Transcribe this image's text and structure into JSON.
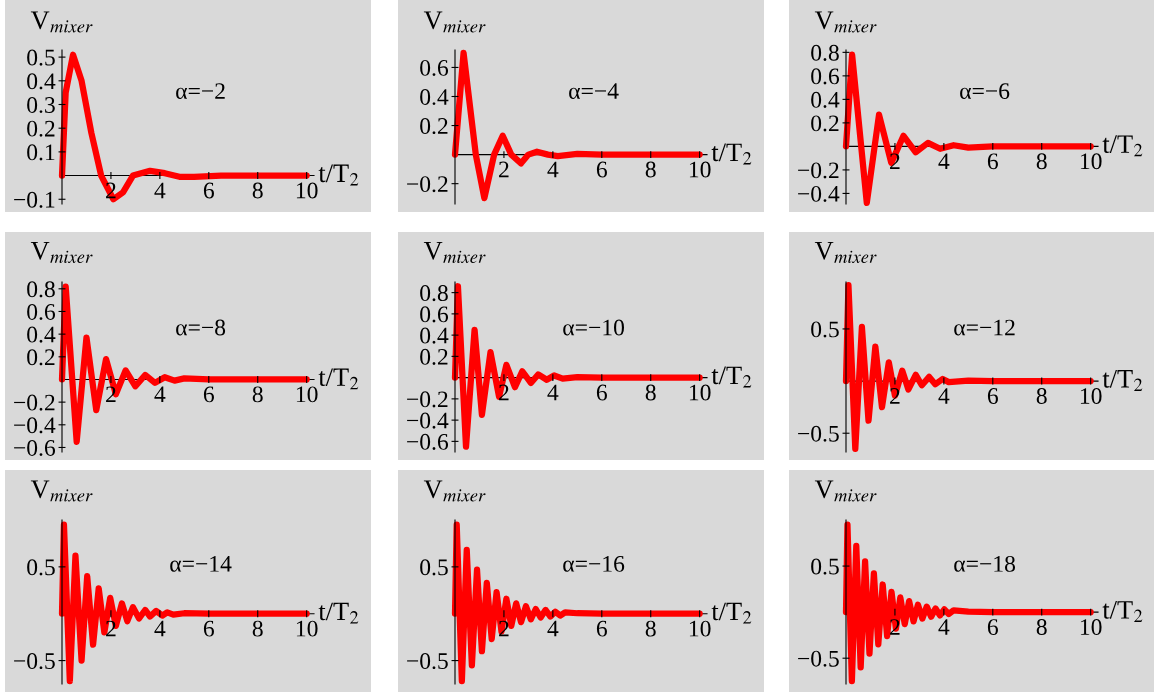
{
  "chart_data": [
    {
      "type": "line",
      "ylabel": "V$_{mixer}$",
      "xlabel": "t/T$_{2}$",
      "annotations": [
        "α=−2"
      ],
      "xlim": [
        0,
        10.3
      ],
      "xticks": [
        2,
        4,
        6,
        8,
        10
      ],
      "ylim": [
        -0.12,
        0.53
      ],
      "yticks": [
        -0.1,
        0.1,
        0.2,
        0.3,
        0.4,
        0.5
      ],
      "grid": false,
      "marker": "none",
      "line_style": "solid",
      "series": [
        {
          "color": "#ff0000",
          "x": [
            0,
            0.15,
            0.45,
            0.8,
            1.2,
            1.6,
            2.1,
            2.5,
            2.9,
            3.6,
            4.2,
            4.8,
            5.4,
            6.5,
            8,
            10
          ],
          "values": [
            0,
            0.35,
            0.51,
            0.4,
            0.18,
            0.0,
            -0.1,
            -0.07,
            0.0,
            0.02,
            0.01,
            -0.005,
            -0.005,
            0.0,
            0.0,
            0.0
          ]
        }
      ]
    },
    {
      "type": "line",
      "ylabel": "V$_{mixer}$",
      "xlabel": "t/T$_{2}$",
      "annotations": [
        "α=−4"
      ],
      "xlim": [
        0,
        10.3
      ],
      "xticks": [
        2,
        4,
        6,
        8,
        10
      ],
      "ylim": [
        -0.34,
        0.72
      ],
      "yticks": [
        -0.2,
        0.2,
        0.4,
        0.6
      ],
      "grid": false,
      "marker": "none",
      "line_style": "solid",
      "series": [
        {
          "color": "#ff0000",
          "x": [
            0,
            0.35,
            0.85,
            1.2,
            1.6,
            1.95,
            2.3,
            2.7,
            3.0,
            3.35,
            3.8,
            4.2,
            5.0,
            6.0,
            8,
            10
          ],
          "values": [
            0,
            0.7,
            0.0,
            -0.3,
            0.0,
            0.13,
            0.0,
            -0.06,
            0.0,
            0.02,
            0.0,
            -0.01,
            0.005,
            0.0,
            0.0,
            0.0
          ]
        }
      ]
    },
    {
      "type": "line",
      "ylabel": "V$_{mixer}$",
      "xlabel": "t/T$_{2}$",
      "annotations": [
        "α=−6"
      ],
      "xlim": [
        0,
        10.3
      ],
      "xticks": [
        2,
        4,
        6,
        8,
        10
      ],
      "ylim": [
        -0.49,
        0.82
      ],
      "yticks": [
        -0.4,
        -0.2,
        0.2,
        0.4,
        0.6,
        0.8
      ],
      "grid": false,
      "marker": "none",
      "line_style": "solid",
      "series": [
        {
          "color": "#ff0000",
          "x": [
            0,
            0.25,
            0.85,
            1.35,
            1.85,
            2.35,
            2.85,
            3.35,
            3.85,
            4.4,
            5.0,
            6.0,
            8,
            10
          ],
          "values": [
            0,
            0.78,
            -0.48,
            0.27,
            -0.14,
            0.09,
            -0.05,
            0.03,
            -0.02,
            0.01,
            -0.01,
            0.0,
            0.0,
            0.0
          ]
        }
      ]
    },
    {
      "type": "line",
      "ylabel": "V$_{mixer}$",
      "xlabel": "t/T$_{2}$",
      "annotations": [
        "α=−8"
      ],
      "xlim": [
        0,
        10.3
      ],
      "xticks": [
        2,
        4,
        6,
        8,
        10
      ],
      "ylim": [
        -0.64,
        0.86
      ],
      "yticks": [
        -0.6,
        -0.4,
        -0.2,
        0.2,
        0.4,
        0.6,
        0.8
      ],
      "grid": false,
      "marker": "none",
      "line_style": "solid",
      "series": [
        {
          "color": "#ff0000",
          "x": [
            0,
            0.15,
            0.6,
            1.0,
            1.4,
            1.8,
            2.2,
            2.6,
            3.0,
            3.4,
            3.8,
            4.2,
            4.6,
            5.0,
            6.0,
            8,
            10
          ],
          "values": [
            0,
            0.82,
            -0.55,
            0.37,
            -0.27,
            0.18,
            -0.13,
            0.08,
            -0.06,
            0.04,
            -0.03,
            0.02,
            -0.01,
            0.01,
            0.0,
            0.0,
            0.0
          ]
        }
      ]
    },
    {
      "type": "line",
      "ylabel": "V$_{mixer}$",
      "xlabel": "t/T$_{2}$",
      "annotations": [
        "α=−10"
      ],
      "xlim": [
        0,
        10.3
      ],
      "xticks": [
        2,
        4,
        6,
        8,
        10
      ],
      "ylim": [
        -0.7,
        0.9
      ],
      "yticks": [
        -0.6,
        -0.4,
        -0.2,
        0.2,
        0.4,
        0.6,
        0.8
      ],
      "grid": false,
      "marker": "none",
      "line_style": "solid",
      "series": [
        {
          "color": "#ff0000",
          "x": [
            0,
            0.12,
            0.45,
            0.8,
            1.1,
            1.45,
            1.8,
            2.1,
            2.45,
            2.75,
            3.1,
            3.4,
            3.75,
            4.05,
            4.4,
            5.0,
            6.0,
            8,
            10
          ],
          "values": [
            0,
            0.86,
            -0.65,
            0.45,
            -0.35,
            0.24,
            -0.18,
            0.12,
            -0.09,
            0.06,
            -0.05,
            0.03,
            -0.02,
            0.02,
            -0.01,
            0.005,
            0.0,
            0.0,
            0.0
          ]
        }
      ]
    },
    {
      "type": "line",
      "ylabel": "V$_{mixer}$",
      "xlabel": "t/T$_{2}$",
      "annotations": [
        "α=−12"
      ],
      "xlim": [
        0,
        10.3
      ],
      "xticks": [
        2,
        4,
        6,
        8,
        10
      ],
      "ylim": [
        -0.68,
        0.95
      ],
      "yticks": [
        -0.5,
        0.5
      ],
      "grid": false,
      "marker": "none",
      "line_style": "solid",
      "series": [
        {
          "color": "#ff0000",
          "x": [
            0,
            0.1,
            0.38,
            0.65,
            0.92,
            1.2,
            1.47,
            1.75,
            2.0,
            2.3,
            2.55,
            2.85,
            3.1,
            3.4,
            3.65,
            3.95,
            4.2,
            5.0,
            6.0,
            8,
            10
          ],
          "values": [
            0,
            0.92,
            -0.65,
            0.52,
            -0.38,
            0.33,
            -0.25,
            0.18,
            -0.14,
            0.1,
            -0.08,
            0.06,
            -0.04,
            0.04,
            -0.03,
            0.02,
            -0.01,
            0.005,
            0.0,
            0.0,
            0.0
          ]
        }
      ]
    },
    {
      "type": "line",
      "ylabel": "V$_{mixer}$",
      "xlabel": "t/T$_{2}$",
      "annotations": [
        "α=−14"
      ],
      "xlim": [
        0,
        10.3
      ],
      "xticks": [
        2,
        4,
        6,
        8,
        10
      ],
      "ylim": [
        -0.75,
        1.0
      ],
      "yticks": [
        -0.5,
        0.5
      ],
      "grid": false,
      "marker": "none",
      "line_style": "solid",
      "series": [
        {
          "color": "#ff0000",
          "x": [
            0,
            0.08,
            0.32,
            0.55,
            0.8,
            1.03,
            1.27,
            1.5,
            1.73,
            1.97,
            2.2,
            2.45,
            2.67,
            2.9,
            3.15,
            3.4,
            3.6,
            3.85,
            4.1,
            4.3,
            4.55,
            5.0,
            6.0,
            8,
            10
          ],
          "values": [
            0,
            0.95,
            -0.72,
            0.62,
            -0.5,
            0.4,
            -0.33,
            0.27,
            -0.2,
            0.17,
            -0.13,
            0.11,
            -0.08,
            0.07,
            -0.05,
            0.04,
            -0.03,
            0.03,
            -0.02,
            0.015,
            -0.01,
            0.005,
            0.0,
            0.0,
            0.0
          ]
        }
      ]
    },
    {
      "type": "line",
      "ylabel": "V$_{mixer}$",
      "xlabel": "t/T$_{2}$",
      "annotations": [
        "α=−16"
      ],
      "xlim": [
        0,
        10.3
      ],
      "xticks": [
        2,
        4,
        6,
        8,
        10
      ],
      "ylim": [
        -0.75,
        1.0
      ],
      "yticks": [
        -0.5,
        0.5
      ],
      "grid": false,
      "marker": "none",
      "line_style": "solid",
      "series": [
        {
          "color": "#ff0000",
          "x": [
            0,
            0.07,
            0.28,
            0.48,
            0.69,
            0.9,
            1.1,
            1.3,
            1.5,
            1.7,
            1.9,
            2.1,
            2.3,
            2.5,
            2.7,
            2.9,
            3.1,
            3.3,
            3.5,
            3.7,
            3.9,
            4.1,
            4.3,
            4.5,
            5.0,
            6.0,
            8,
            10
          ],
          "values": [
            0,
            0.95,
            -0.72,
            0.68,
            -0.55,
            0.47,
            -0.4,
            0.33,
            -0.27,
            0.23,
            -0.19,
            0.16,
            -0.13,
            0.11,
            -0.09,
            0.08,
            -0.06,
            0.05,
            -0.04,
            0.04,
            -0.03,
            0.02,
            -0.02,
            0.015,
            0.005,
            0.0,
            0.0,
            0.0
          ]
        }
      ]
    },
    {
      "type": "line",
      "ylabel": "V$_{mixer}$",
      "xlabel": "t/T$_{2}$",
      "annotations": [
        "α=−18"
      ],
      "xlim": [
        0,
        10.3
      ],
      "xticks": [
        2,
        4,
        6,
        8,
        10
      ],
      "ylim": [
        -0.78,
        1.0
      ],
      "yticks": [
        -0.5,
        0.5
      ],
      "grid": false,
      "marker": "none",
      "line_style": "solid",
      "series": [
        {
          "color": "#ff0000",
          "x": [
            0,
            0.06,
            0.24,
            0.42,
            0.6,
            0.78,
            0.96,
            1.14,
            1.32,
            1.5,
            1.68,
            1.86,
            2.04,
            2.22,
            2.4,
            2.58,
            2.76,
            2.94,
            3.12,
            3.3,
            3.48,
            3.66,
            3.84,
            4.02,
            4.2,
            4.4,
            5.0,
            6.0,
            8,
            10
          ],
          "values": [
            0,
            0.95,
            -0.75,
            0.72,
            -0.6,
            0.55,
            -0.45,
            0.42,
            -0.35,
            0.3,
            -0.26,
            0.22,
            -0.18,
            0.16,
            -0.13,
            0.12,
            -0.1,
            0.08,
            -0.07,
            0.06,
            -0.05,
            0.04,
            -0.035,
            0.03,
            -0.02,
            0.02,
            0.005,
            0.0,
            0.0,
            0.0
          ]
        }
      ]
    }
  ]
}
